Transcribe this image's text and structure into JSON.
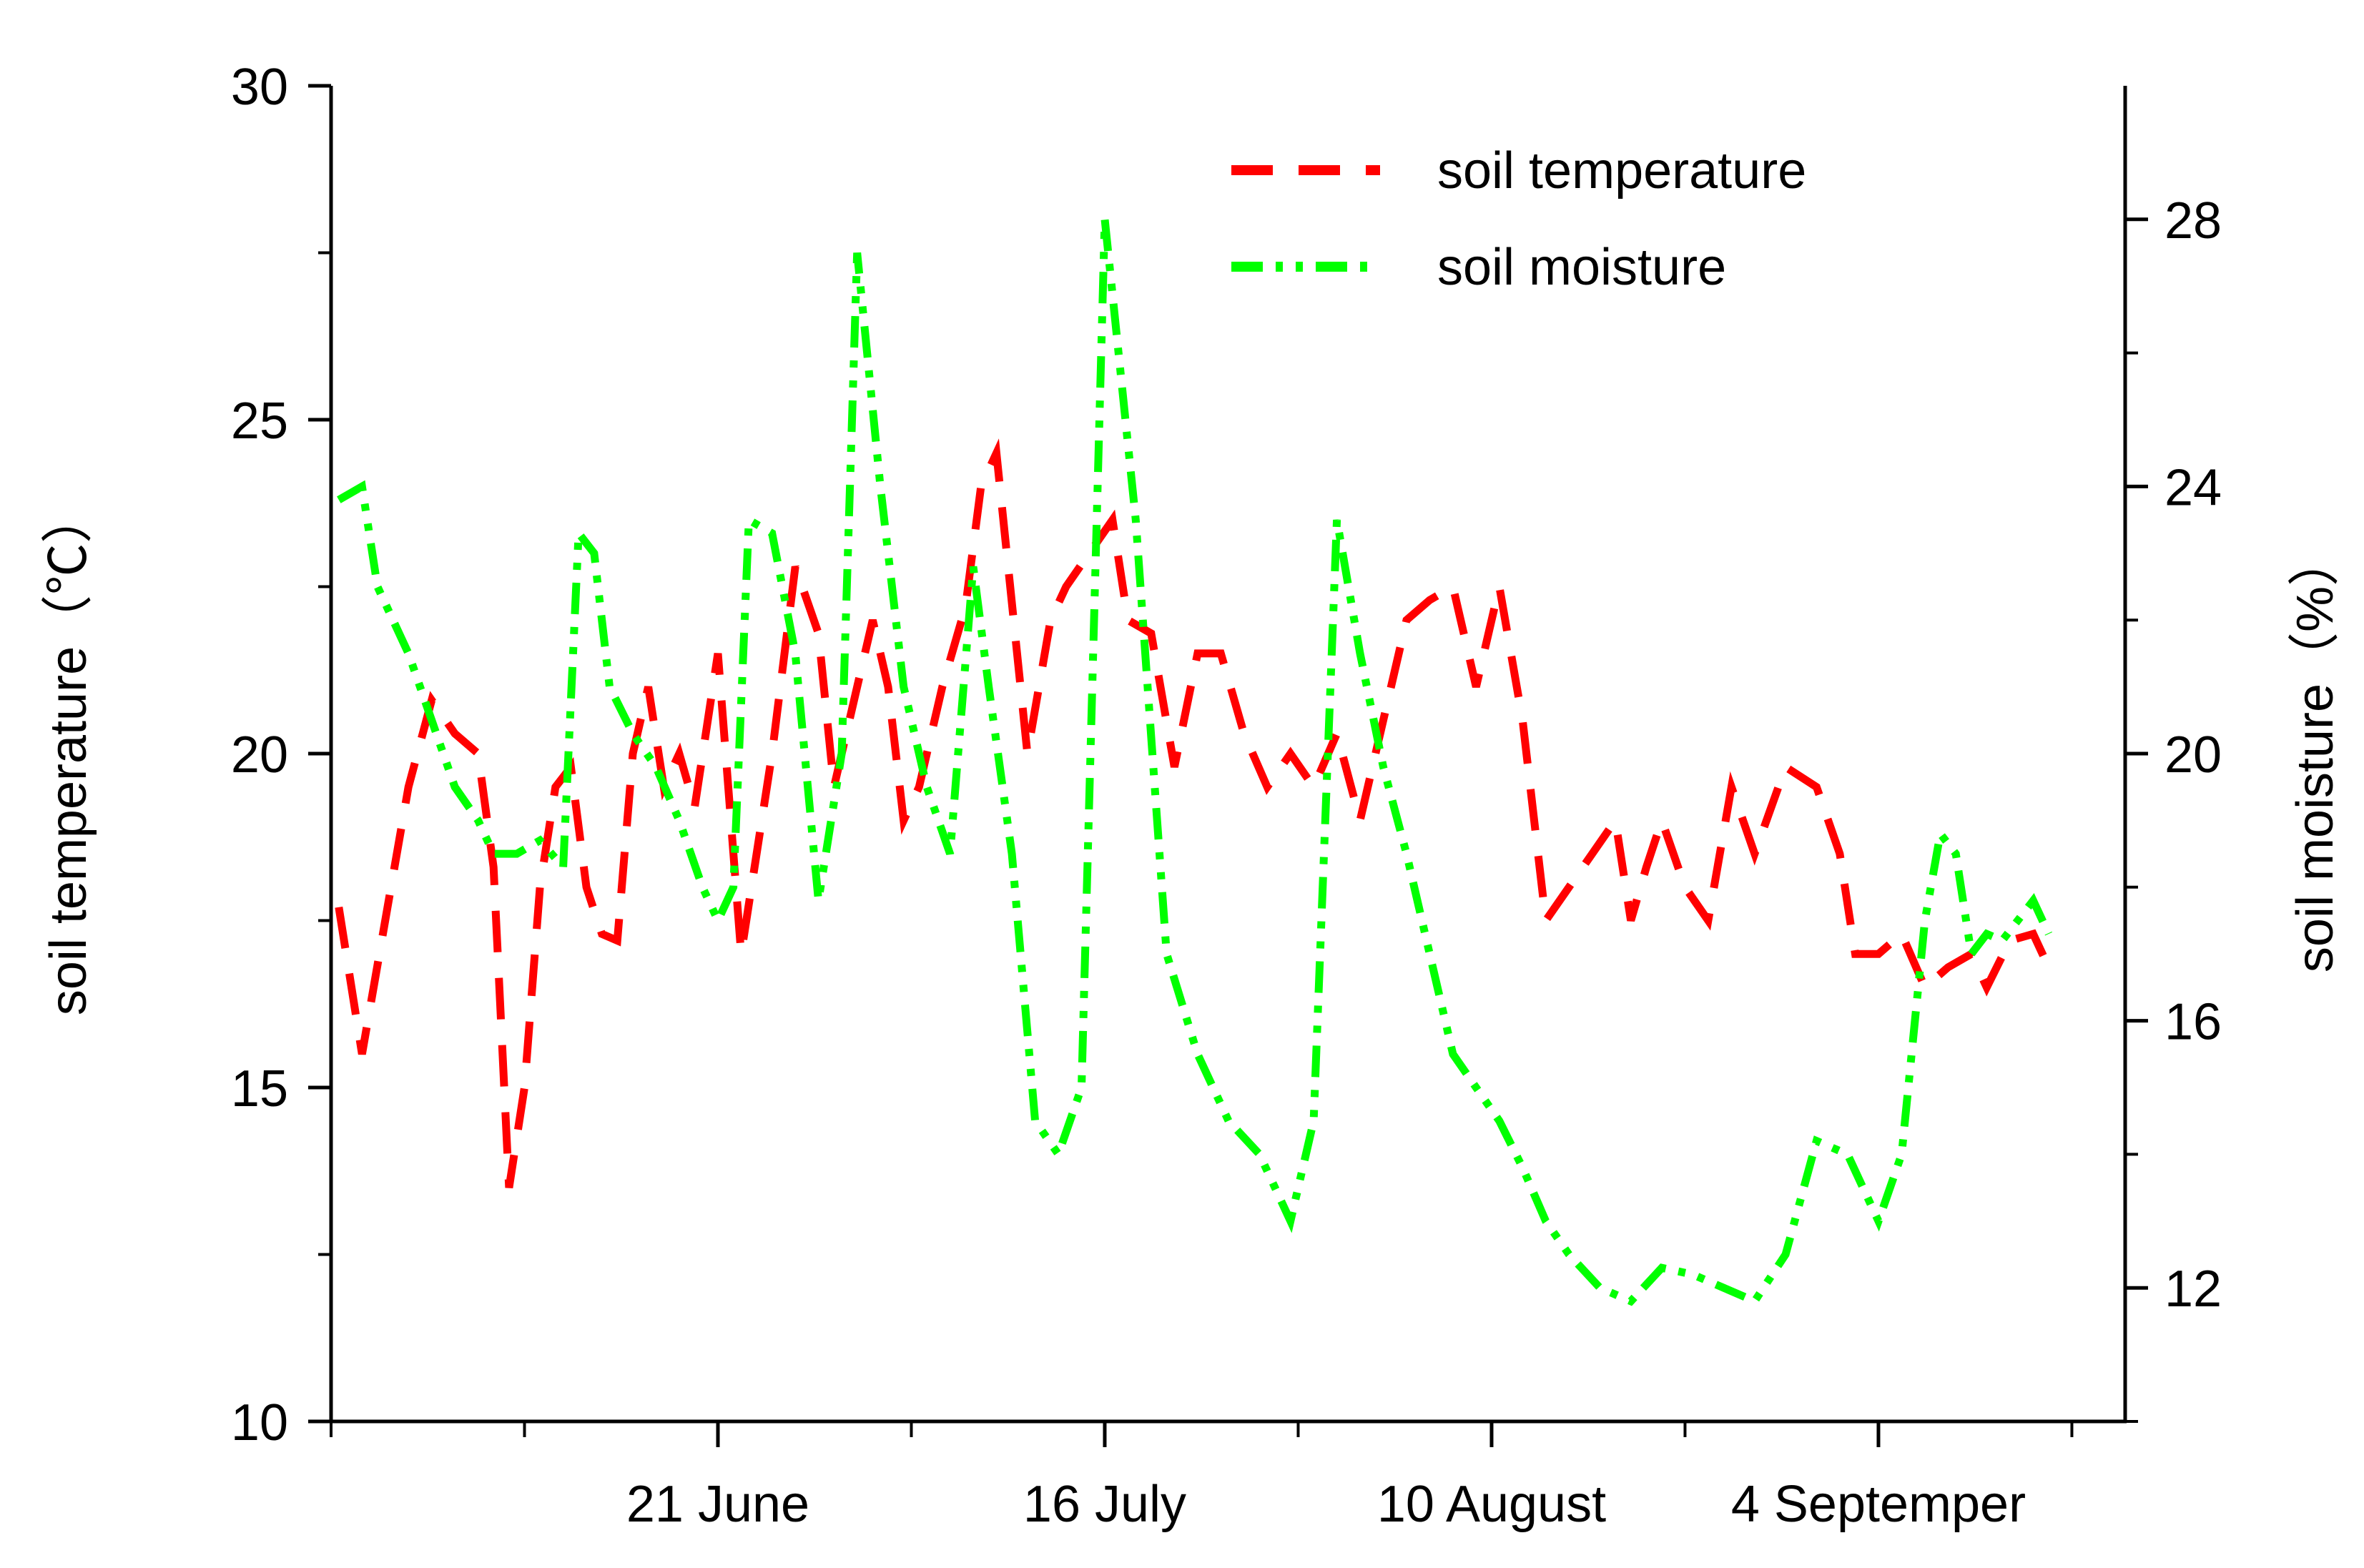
{
  "chart_data": {
    "type": "line",
    "title": "",
    "xlabel": "",
    "x_tick_labels": [
      "21 June",
      "16 July",
      "10 August",
      "4 Septemper"
    ],
    "left_axis": {
      "label": "soil temperature（℃）",
      "ylim": [
        10,
        30
      ],
      "ticks": [
        "10",
        "15",
        "20",
        "25",
        "30"
      ]
    },
    "right_axis": {
      "label": "soil moisture（%）",
      "ylim": [
        10,
        30
      ],
      "ticks": [
        "12",
        "16",
        "20",
        "24",
        "28"
      ]
    },
    "x_days": {
      "start": 0,
      "end": 111,
      "labeled_ticks": [
        25,
        50,
        75,
        100
      ],
      "minor_ticks": [
        0,
        12.5,
        37.5,
        62.5,
        87.5,
        112.5
      ]
    },
    "series": [
      {
        "name": "soil temperature",
        "axis": "left",
        "color": "#ff0000",
        "style": "dash",
        "x": [
          0.5,
          2,
          3.5,
          5,
          6.5,
          8,
          9.5,
          10.5,
          11.5,
          12.5,
          13.5,
          14.5,
          15.5,
          16.5,
          17.5,
          18.5,
          19.5,
          20.5,
          21.5,
          22.5,
          23.5,
          25,
          26.5,
          27.5,
          28.5,
          30,
          31.5,
          32.5,
          34,
          35,
          36,
          37,
          38,
          39.5,
          41,
          42,
          43,
          45,
          46.5,
          47.5,
          49,
          50.5,
          51.5,
          53,
          54.5,
          56,
          57.5,
          59,
          60.5,
          62,
          63.5,
          65,
          66.5,
          68,
          69.5,
          71,
          72.5,
          74,
          75.5,
          77,
          78.5,
          80,
          81.5,
          83,
          84,
          85,
          86,
          87.5,
          89,
          90.5,
          92,
          94,
          96,
          97.5,
          98.5,
          100,
          101.5,
          103,
          104.5,
          106,
          107,
          108.5,
          110,
          111
        ],
        "y": [
          17.7,
          15.5,
          17.5,
          19.5,
          20.8,
          20.3,
          20.0,
          18.3,
          13.5,
          15.0,
          18.0,
          19.5,
          19.8,
          18.0,
          17.3,
          17.2,
          20.0,
          21.0,
          19.5,
          20.0,
          19.2,
          21.5,
          17.0,
          18.5,
          20.0,
          22.8,
          21.8,
          19.5,
          21.0,
          22.0,
          21.0,
          19.0,
          19.5,
          21.0,
          22.2,
          24.0,
          24.5,
          20.0,
          22.0,
          22.5,
          23.0,
          23.5,
          22.0,
          21.8,
          19.8,
          21.5,
          21.5,
          20.3,
          19.5,
          20.0,
          19.5,
          20.3,
          19.0,
          20.5,
          22.0,
          22.3,
          22.5,
          21.0,
          22.5,
          20.5,
          17.5,
          18.0,
          18.5,
          19.0,
          17.5,
          18.3,
          19.0,
          18.0,
          17.5,
          19.5,
          18.5,
          19.8,
          19.5,
          18.5,
          17.0,
          17.0,
          17.3,
          16.5,
          16.8,
          17.0,
          16.5,
          17.2,
          17.3,
          16.8
        ],
        "note": "approximate readings"
      },
      {
        "name": "soil moisture",
        "axis": "right",
        "color": "#00ff00",
        "style": "dash-dot-dot",
        "x": [
          0.5,
          2,
          3,
          5,
          6.5,
          8,
          9.5,
          10.5,
          12,
          13.5,
          15,
          16,
          17,
          18,
          19.5,
          21,
          22.5,
          24,
          25,
          26,
          27,
          28.5,
          30,
          31.5,
          33,
          34,
          35.5,
          37,
          38.5,
          40,
          41.5,
          42.5,
          44,
          45.5,
          47,
          48.5,
          50,
          52,
          54,
          56,
          58,
          60,
          62,
          63.5,
          65,
          66.5,
          68,
          69.5,
          71,
          72.5,
          74,
          75.5,
          77,
          78.5,
          80,
          82,
          84,
          86,
          88,
          90,
          92,
          94,
          96,
          98,
          100,
          101.5,
          103,
          104,
          105,
          106,
          107,
          108,
          109,
          110,
          111
        ],
        "y": [
          23.8,
          24.0,
          22.5,
          21.5,
          20.5,
          19.5,
          19.0,
          18.5,
          18.5,
          18.7,
          18.3,
          23.3,
          23.0,
          21.0,
          20.3,
          19.8,
          19.0,
          18.0,
          17.5,
          18.0,
          23.5,
          23.3,
          21.5,
          17.8,
          20.0,
          27.5,
          24.0,
          21.0,
          19.5,
          18.5,
          22.8,
          21.0,
          18.5,
          14.5,
          14.0,
          15.0,
          28.0,
          23.5,
          17.0,
          15.5,
          14.5,
          14.0,
          13.0,
          14.5,
          23.5,
          21.5,
          19.8,
          18.5,
          17.0,
          15.5,
          15.0,
          14.5,
          13.8,
          13.0,
          12.5,
          12.0,
          11.8,
          12.3,
          12.2,
          12.0,
          11.8,
          12.5,
          14.2,
          14.0,
          13.0,
          14.0,
          17.5,
          18.8,
          18.5,
          17.0,
          17.3,
          17.2,
          17.5,
          17.8,
          17.3
        ],
        "note": "approximate readings"
      }
    ],
    "legend": {
      "placement": "top-right",
      "entries": [
        "soil temperature",
        "soil moisture"
      ]
    },
    "grid": false
  }
}
